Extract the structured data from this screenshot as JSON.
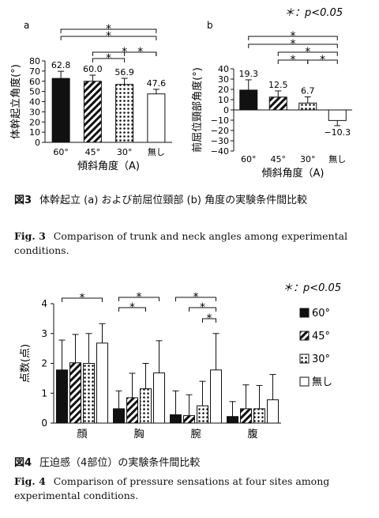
{
  "chart_data": [
    {
      "type": "bar",
      "panel_label": "a",
      "categories": [
        "60°",
        "45°",
        "30°",
        "無し"
      ],
      "values": [
        62.8,
        60.0,
        56.9,
        47.6
      ],
      "errors": [
        7,
        6,
        6,
        4.5
      ],
      "value_labels": [
        "62.8",
        "60.0",
        "56.9",
        "47.6"
      ],
      "xlabel": "傾斜角度（A)",
      "ylabel": "体幹起立角度(°)",
      "ylim": [
        0,
        80
      ],
      "yticks": [
        "0",
        "10",
        "20",
        "30",
        "40",
        "50",
        "60",
        "70",
        "80"
      ],
      "patterns": [
        "black",
        "diagonal",
        "dots",
        "white"
      ],
      "significance": [
        {
          "from": 0,
          "to": 3,
          "mark": "*"
        },
        {
          "from": 0,
          "to": 3,
          "mark": "*"
        },
        {
          "from": 1,
          "to": 3,
          "mark": "*"
        },
        {
          "from": 1,
          "to": 2,
          "mark": "*"
        },
        {
          "from": 2,
          "to": 3,
          "mark": "*"
        }
      ]
    },
    {
      "type": "bar",
      "panel_label": "b",
      "categories": [
        "60°",
        "45°",
        "30°",
        "無し"
      ],
      "values": [
        19.3,
        12.5,
        6.7,
        -10.3
      ],
      "errors": [
        10,
        6,
        6,
        5
      ],
      "value_labels": [
        "19.3",
        "12.5",
        "6.7",
        "−10.3"
      ],
      "xlabel": "傾斜角度（A)",
      "ylabel": "前屈位頸部角度(°)",
      "ylim": [
        -40,
        40
      ],
      "yticks": [
        "−40",
        "−30",
        "−20",
        "−10",
        "0",
        "10",
        "20",
        "30",
        "40"
      ],
      "patterns": [
        "black",
        "diagonal",
        "dots",
        "white"
      ],
      "significance": [
        {
          "from": 0,
          "to": 3,
          "mark": "*"
        },
        {
          "from": 0,
          "to": 3,
          "mark": "*"
        },
        {
          "from": 1,
          "to": 3,
          "mark": "*"
        },
        {
          "from": 2,
          "to": 3,
          "mark": "*"
        },
        {
          "from": 1,
          "to": 2,
          "mark": "*"
        }
      ],
      "legend_note": "＊：p<0.05"
    },
    {
      "type": "bar",
      "categories": [
        "顔",
        "胸",
        "腕",
        "腹"
      ],
      "series": [
        {
          "name": "60°",
          "pattern": "black",
          "values": [
            1.78,
            0.48,
            0.28,
            0.22
          ],
          "errors": [
            1.0,
            0.6,
            0.8,
            0.5
          ]
        },
        {
          "name": "45°",
          "pattern": "diagonal",
          "values": [
            2.02,
            0.85,
            0.25,
            0.48
          ],
          "errors": [
            0.95,
            0.82,
            0.7,
            0.8
          ]
        },
        {
          "name": "30°",
          "pattern": "dots",
          "values": [
            2.0,
            1.15,
            0.58,
            0.48
          ],
          "errors": [
            1.0,
            0.85,
            0.82,
            0.78
          ]
        },
        {
          "name": "無し",
          "pattern": "white",
          "values": [
            2.68,
            1.68,
            1.78,
            0.78
          ],
          "errors": [
            0.65,
            1.08,
            1.22,
            0.85
          ]
        }
      ],
      "ylabel": "点数(点)",
      "ylim": [
        0,
        4
      ],
      "yticks": [
        "0",
        "1",
        "2",
        "3",
        "4"
      ],
      "significance": [
        {
          "category": 0,
          "from": 0,
          "to": 3,
          "mark": "*"
        },
        {
          "category": 1,
          "from": 0,
          "to": 3,
          "mark": "*"
        },
        {
          "category": 1,
          "from": 0,
          "to": 2,
          "mark": "*"
        },
        {
          "category": 2,
          "from": 0,
          "to": 3,
          "mark": "*"
        },
        {
          "category": 2,
          "from": 1,
          "to": 3,
          "mark": "*"
        },
        {
          "category": 2,
          "from": 2,
          "to": 3,
          "mark": "*"
        }
      ],
      "legend_note": "＊：p<0.05"
    }
  ],
  "captions": {
    "fig3_jp_label": "図3",
    "fig3_jp": "体幹起立 (a) および前屈位頸部 (b) 角度の実験条件間比較",
    "fig3_en_label": "Fig. 3",
    "fig3_en": "Comparison of trunk and neck angles among experimental conditions.",
    "fig4_jp_label": "図4",
    "fig4_jp": "圧迫感（4部位）の実験条件間比較",
    "fig4_en_label": "Fig. 4",
    "fig4_en": "Comparison of pressure sensations at four sites among experimental conditions."
  }
}
